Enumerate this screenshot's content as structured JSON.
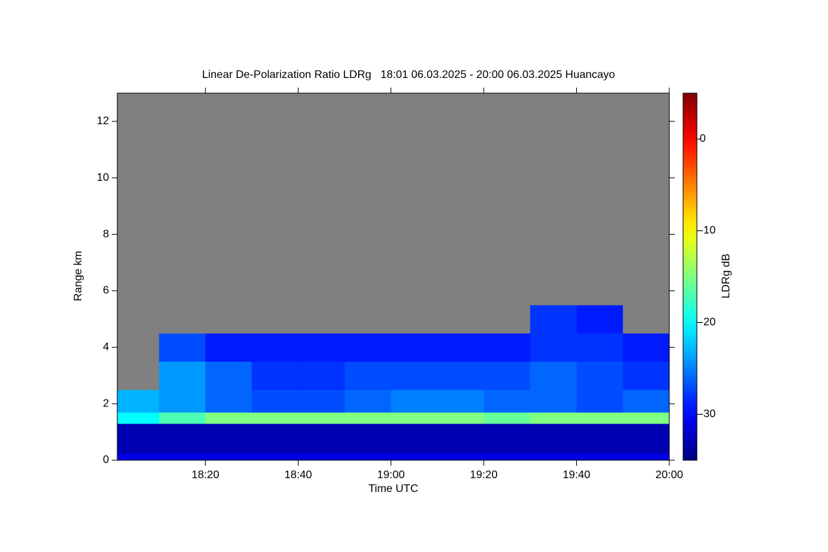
{
  "chart_data": {
    "type": "heatmap",
    "title": "Linear De-Polarization Ratio LDRg   18:01 06.03.2025 - 20:00 06.03.2025 Huancayo",
    "xlabel": "Time UTC",
    "ylabel": "Range km",
    "colorbar_label": "LDRg dB",
    "colormap": "jet",
    "nodata_color": "#808080",
    "xlim": [
      18.0167,
      20.0
    ],
    "xticks": [
      {
        "value": 18.3333,
        "label": "18:20"
      },
      {
        "value": 18.6667,
        "label": "18:40"
      },
      {
        "value": 19.0,
        "label": "19:00"
      },
      {
        "value": 19.3333,
        "label": "19:20"
      },
      {
        "value": 19.6667,
        "label": "19:40"
      },
      {
        "value": 20.0,
        "label": "20:00"
      }
    ],
    "ylim": [
      0,
      13
    ],
    "yticks": [
      0,
      2,
      4,
      6,
      8,
      10,
      12
    ],
    "zlim": [
      -35,
      5
    ],
    "zticks": [
      0,
      -10,
      -20,
      -30
    ],
    "x_edges": [
      18.0167,
      18.1667,
      18.3333,
      18.5,
      18.6667,
      18.8333,
      19.0,
      19.1667,
      19.3333,
      19.5,
      19.6667,
      19.8333,
      20.0
    ],
    "y_edges": [
      0,
      0.25,
      1.3,
      1.7,
      2.5,
      3.5,
      4.5,
      5.5,
      13
    ],
    "z": [
      [
        -31,
        -31,
        -31,
        -31,
        -31,
        -31,
        -31,
        -31,
        -31,
        -31,
        -31,
        -31
      ],
      [
        -33,
        -33,
        -33,
        -33,
        -33,
        -33,
        -33,
        -33,
        -33,
        -33,
        -33,
        -33
      ],
      [
        -20,
        -17,
        -15,
        -15,
        -15,
        -15,
        -15,
        -15,
        -16,
        -15,
        -15,
        -15
      ],
      [
        -23,
        -24,
        -26,
        -27,
        -27,
        -26,
        -25,
        -25,
        -26,
        -26,
        -27,
        -26
      ],
      [
        null,
        -24,
        -26,
        -28,
        -28,
        -27,
        -27,
        -27,
        -27,
        -26,
        -27,
        -28
      ],
      [
        null,
        -27,
        -29,
        -29,
        -29,
        -29,
        -29,
        -29,
        -29,
        -28,
        -28,
        -29
      ],
      [
        null,
        null,
        null,
        null,
        null,
        null,
        null,
        null,
        null,
        -28,
        -29,
        null
      ],
      [
        null,
        null,
        null,
        null,
        null,
        null,
        null,
        null,
        null,
        null,
        null,
        null
      ]
    ]
  }
}
